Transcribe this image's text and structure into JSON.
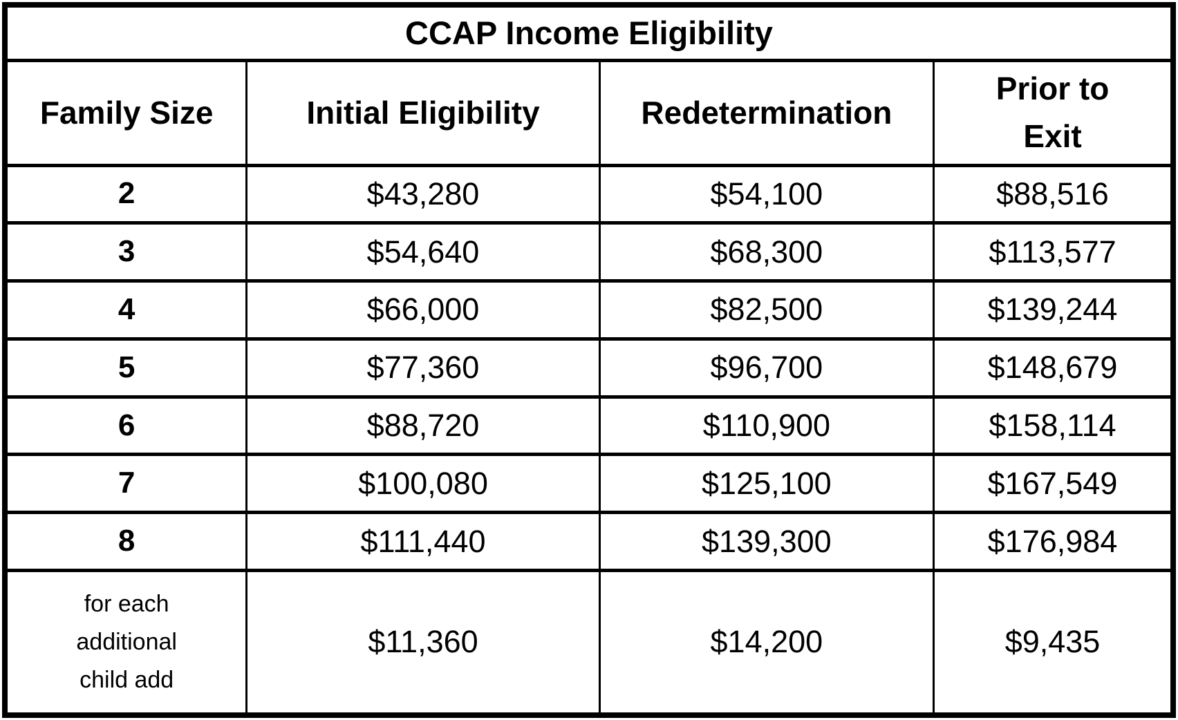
{
  "table": {
    "title": "CCAP Income Eligibility",
    "columns": [
      "Family Size",
      "Initial Eligibility",
      "Redetermination",
      "Prior to\nExit"
    ],
    "rows": [
      [
        "2",
        "$43,280",
        "$54,100",
        "$88,516"
      ],
      [
        "3",
        "$54,640",
        "$68,300",
        "$113,577"
      ],
      [
        "4",
        "$66,000",
        "$82,500",
        "$139,244"
      ],
      [
        "5",
        "$77,360",
        "$96,700",
        "$148,679"
      ],
      [
        "6",
        "$88,720",
        "$110,900",
        "$158,114"
      ],
      [
        "7",
        "$100,080",
        "$125,100",
        "$167,549"
      ],
      [
        "8",
        "$111,440",
        "$139,300",
        "$176,984"
      ],
      [
        "for each\nadditional\nchild add",
        "$11,360",
        "$14,200",
        "$9,435"
      ]
    ],
    "colors": {
      "border": "#000000",
      "text": "#000000",
      "background": "#ffffff"
    }
  }
}
